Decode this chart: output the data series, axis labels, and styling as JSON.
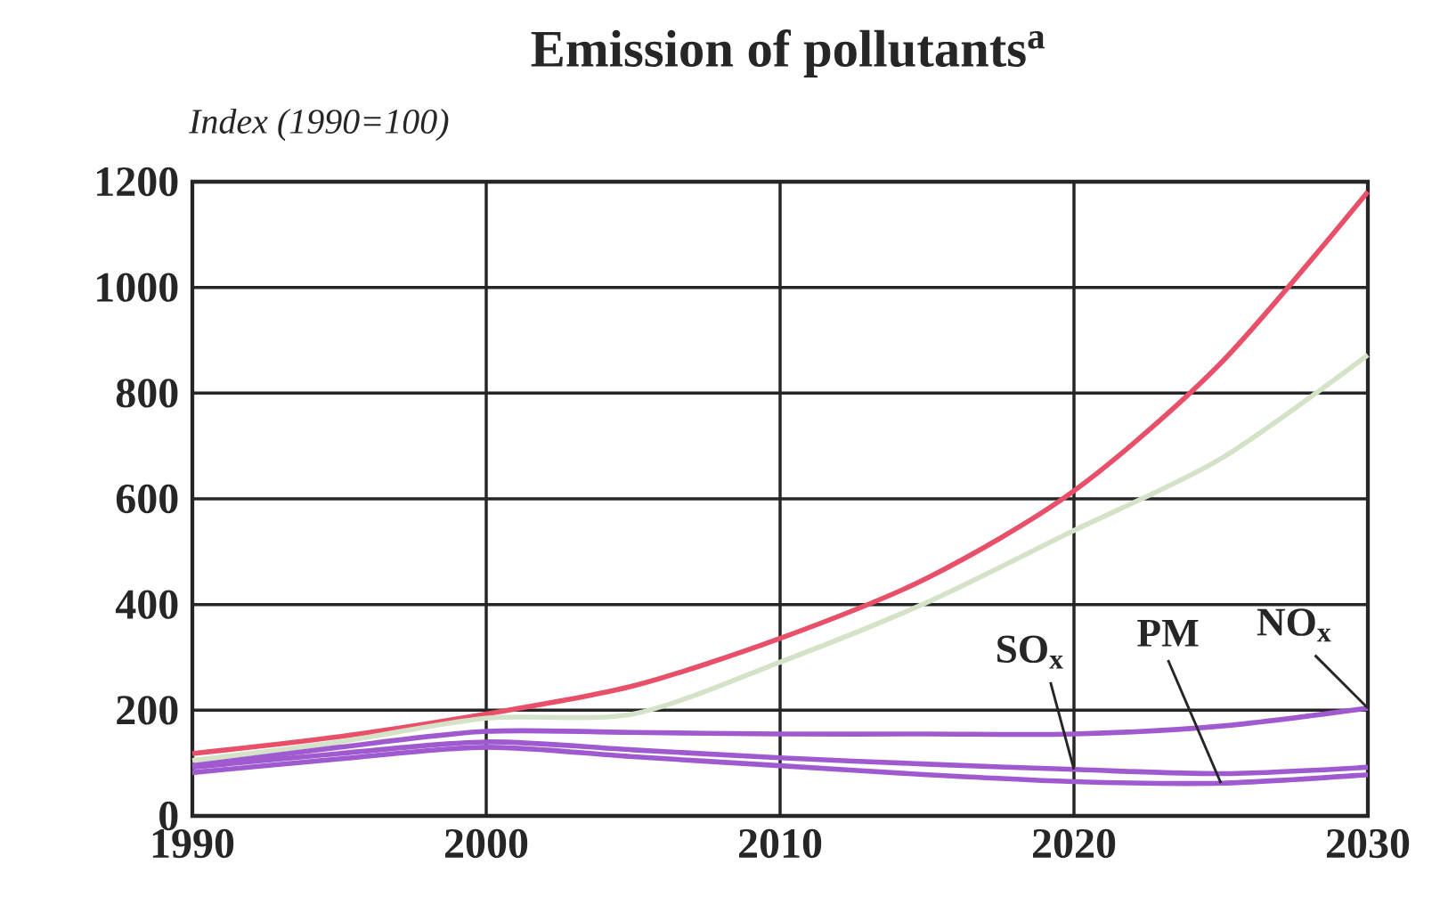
{
  "chart_data": {
    "type": "line",
    "title": "Emission of pollutants$^{a}$",
    "ylabel": "Index (1990=100)",
    "x": [
      1990,
      1995,
      2000,
      2005,
      2010,
      2015,
      2020,
      2025,
      2030
    ],
    "series": [
      {
        "color": "#e8506a",
        "values": [
          118,
          150,
          193,
          246,
          336,
          450,
          615,
          857,
          1181
        ]
      },
      {
        "color": "#d4e3c8",
        "values": [
          105,
          140,
          185,
          193,
          291,
          404,
          540,
          676,
          872
        ]
      },
      {
        "name": "NO$_{x}$",
        "color": "#a05ad0",
        "values": [
          95,
          130,
          160,
          158,
          155,
          155,
          155,
          170,
          204
        ]
      },
      {
        "name": "SO$_{x}$",
        "color": "#a05ad0",
        "values": [
          92,
          118,
          140,
          125,
          110,
          98,
          88,
          80,
          92
        ]
      },
      {
        "name": "PM",
        "color": "#a05ad0",
        "values": [
          82,
          108,
          130,
          112,
          95,
          78,
          65,
          62,
          78
        ]
      }
    ],
    "xlim": [
      1990,
      2030
    ],
    "ylim": [
      0,
      1200
    ],
    "xticks": [
      1990,
      2000,
      2010,
      2020,
      2030
    ],
    "yticks": [
      0,
      200,
      400,
      600,
      800,
      1000,
      1200
    ],
    "grid": true,
    "legend": false,
    "marker": "none",
    "line_style": "solid"
  }
}
